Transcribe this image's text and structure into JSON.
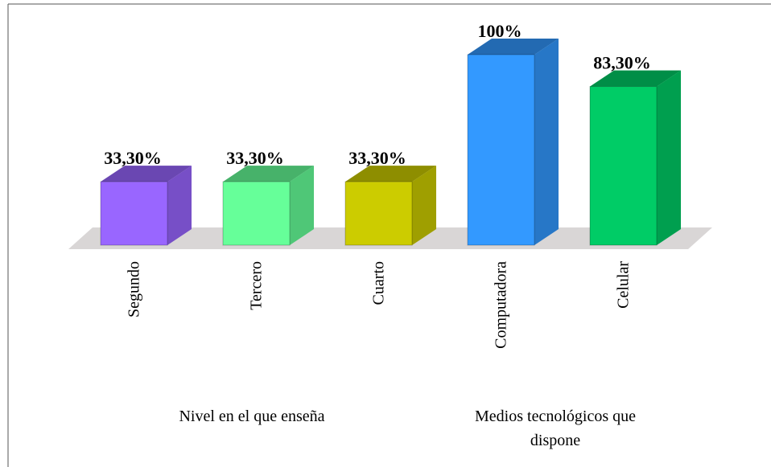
{
  "chart_data": {
    "type": "bar3d",
    "categories": [
      "Segundo",
      "Tercero",
      "Cuarto",
      "Computadora",
      "Celular"
    ],
    "values": [
      33.3,
      33.3,
      33.3,
      100,
      83.3
    ],
    "value_labels": [
      "33,30%",
      "33,30%",
      "33,30%",
      "100%",
      "83,30%"
    ],
    "colors": [
      "#9966ff",
      "#66ff99",
      "#cccc00",
      "#3399ff",
      "#00cc66"
    ],
    "groups": [
      "Nivel en el que enseña",
      "Medios tecnológicos que dispone"
    ]
  }
}
